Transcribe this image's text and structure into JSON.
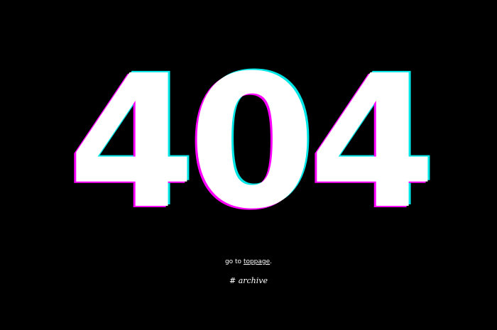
{
  "error": {
    "code": "404"
  },
  "back": {
    "prefix": "go to ",
    "link_label": "toppage",
    "suffix": "."
  },
  "archive": {
    "label": "# archive"
  },
  "colors": {
    "background": "#000000",
    "text": "#ffffff",
    "glitch_magenta": "#ff00ff",
    "glitch_cyan": "#00e5e5"
  }
}
